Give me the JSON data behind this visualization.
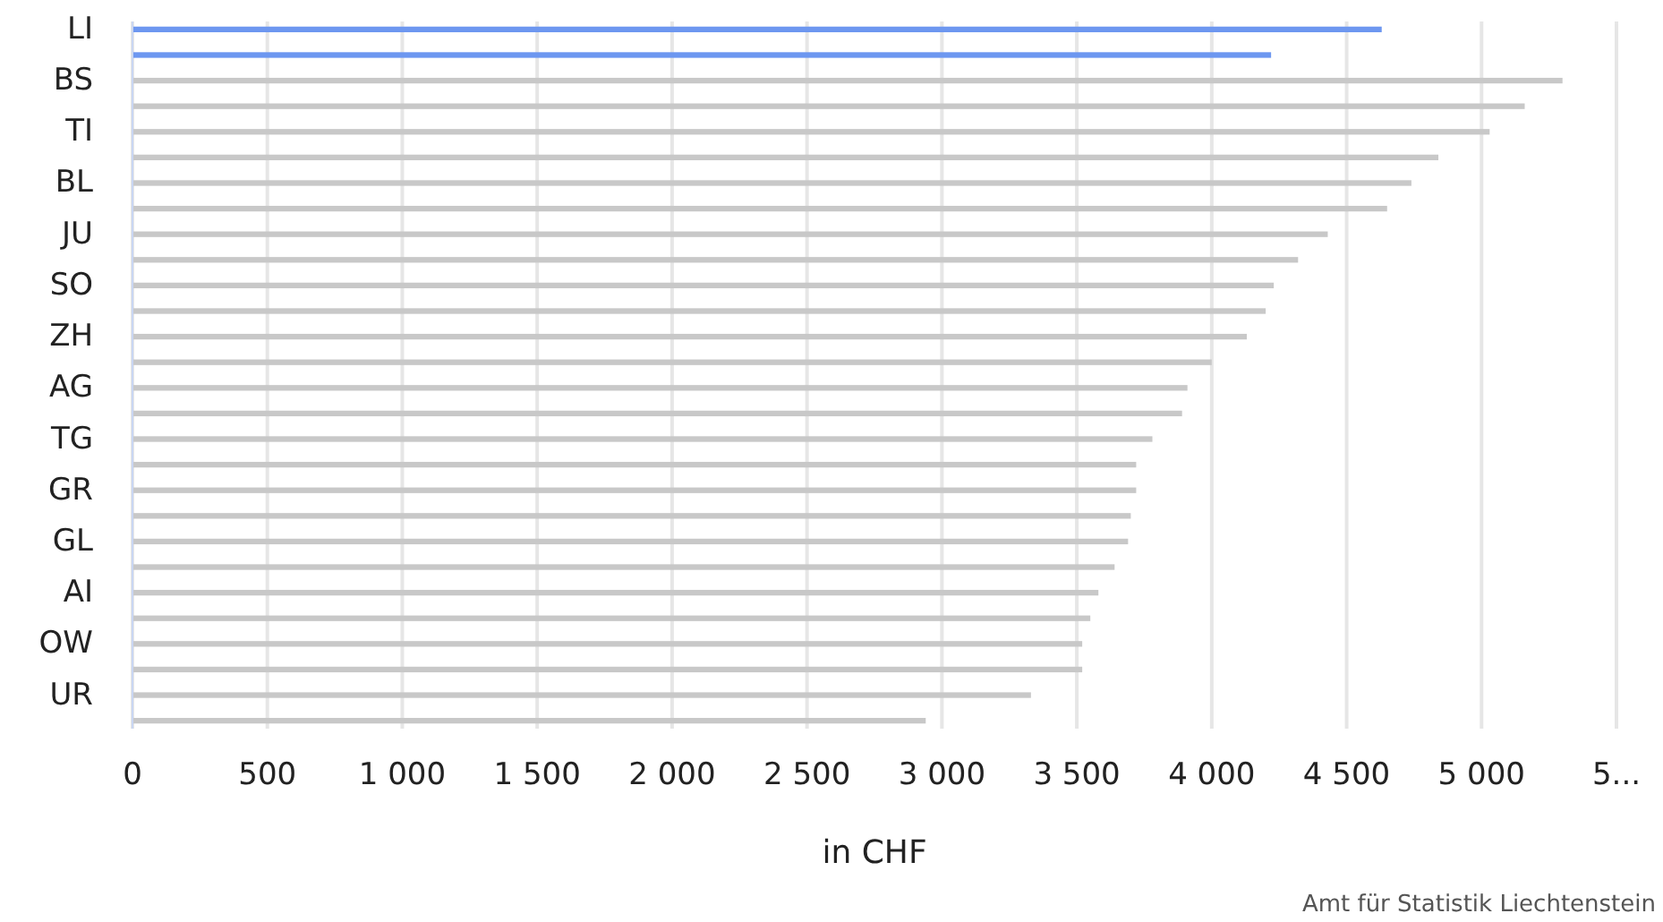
{
  "chart_data": {
    "type": "bar",
    "orientation": "horizontal",
    "xlabel": "in CHF",
    "categories": [
      "LI",
      null,
      "BS",
      null,
      "TI",
      null,
      "BL",
      null,
      "JU",
      null,
      "SO",
      null,
      "ZH",
      null,
      "AG",
      null,
      "TG",
      null,
      "GR",
      null,
      "GL",
      null,
      "AI",
      null,
      "OW",
      null,
      "UR",
      null
    ],
    "values": [
      4630,
      4220,
      5300,
      5160,
      5030,
      4840,
      4740,
      4650,
      4430,
      4320,
      4230,
      4200,
      4130,
      4000,
      3910,
      3890,
      3780,
      3720,
      3720,
      3700,
      3690,
      3640,
      3580,
      3550,
      3520,
      3520,
      3330,
      2940
    ],
    "colors": [
      "#6d97f0",
      "#6d97f0",
      "#c8c8c8",
      "#c8c8c8",
      "#c8c8c8",
      "#c8c8c8",
      "#c8c8c8",
      "#c8c8c8",
      "#c8c8c8",
      "#c8c8c8",
      "#c8c8c8",
      "#c8c8c8",
      "#c8c8c8",
      "#c8c8c8",
      "#c8c8c8",
      "#c8c8c8",
      "#c8c8c8",
      "#c8c8c8",
      "#c8c8c8",
      "#c8c8c8",
      "#c8c8c8",
      "#c8c8c8",
      "#c8c8c8",
      "#c8c8c8",
      "#c8c8c8",
      "#c8c8c8",
      "#c8c8c8",
      "#c8c8c8"
    ],
    "xlim": [
      0,
      5500
    ],
    "xticks": [
      0,
      500,
      {
        "value": 1000,
        "label": "1 000"
      },
      {
        "value": 1500,
        "label": "1 500"
      },
      {
        "value": 2000,
        "label": "2 000"
      },
      {
        "value": 2500,
        "label": "2 500"
      },
      {
        "value": 3000,
        "label": "3 000"
      },
      {
        "value": 3500,
        "label": "3 500"
      },
      {
        "value": 4000,
        "label": "4 000"
      },
      {
        "value": 4500,
        "label": "4 500"
      },
      {
        "value": 5000,
        "label": "5 000"
      },
      {
        "value": 5500,
        "label": "5..."
      }
    ],
    "grid": "x",
    "annotations": [
      "Amt für Statistik Liechtenstein"
    ]
  }
}
